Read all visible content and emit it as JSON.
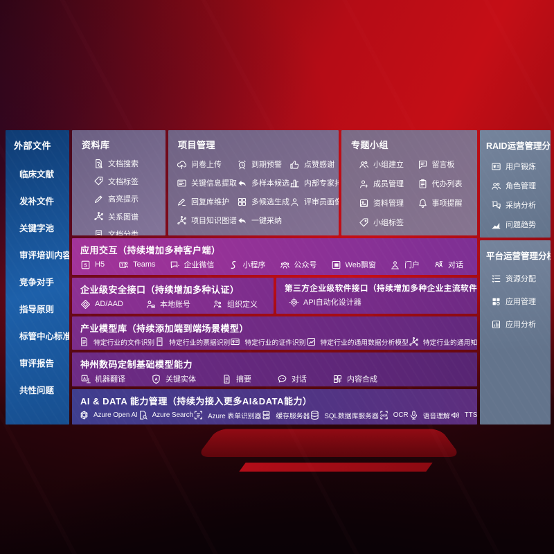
{
  "palette": {
    "blue1": "#0f3c74",
    "blue2": "#1d60aa",
    "gray1": "#6b5f82",
    "gray2": "#83759a",
    "slate1": "#63748c",
    "slate2": "#75849c",
    "p1": "#a23399",
    "p2": "#7e3094",
    "p3": "#8d3093",
    "p4": "#6f2a84",
    "p5": "#63297e",
    "p6": "#572573",
    "i1": "#3f3e8e",
    "i2": "#5d2e7e",
    "bg_red": "#c50e16",
    "bg_dark": "#16020a"
  },
  "external_files": {
    "title": "外部文件",
    "items": [
      "临床文献",
      "发补文件",
      "关键字池",
      "审评培训内容",
      "竞争对手",
      "指导原则",
      "标管中心标准",
      "审评报告",
      "共性问题"
    ]
  },
  "library": {
    "title": "资料库",
    "items": [
      {
        "label": "文档搜索",
        "icon": "doc-search"
      },
      {
        "label": "文档标签",
        "icon": "tag"
      },
      {
        "label": "高亮提示",
        "icon": "highlight-pen"
      },
      {
        "label": "关系图谱",
        "icon": "knowledge-graph"
      },
      {
        "label": "文档分类",
        "icon": "doc-category"
      }
    ]
  },
  "project": {
    "title": "项目管理",
    "items": [
      {
        "label": "问卷上传",
        "icon": "cloud-upload"
      },
      {
        "label": "到期预警",
        "icon": "alarm"
      },
      {
        "label": "点赞感谢",
        "icon": "thumbs-up"
      },
      {
        "label": "关键信息提取",
        "icon": "info-card"
      },
      {
        "label": "多样本候选",
        "icon": "reply-arrow"
      },
      {
        "label": "内部专家排名",
        "icon": "ranking"
      },
      {
        "label": "回复库维护",
        "icon": "pen"
      },
      {
        "label": "多候选生成",
        "icon": "grid"
      },
      {
        "label": "评审员画像",
        "icon": "person"
      },
      {
        "label": "项目知识图谱",
        "icon": "knowledge-graph"
      },
      {
        "label": "一键采纳",
        "icon": "reply-arrow"
      }
    ]
  },
  "topic_group": {
    "title": "专题小组",
    "items": [
      {
        "label": "小组建立",
        "icon": "people"
      },
      {
        "label": "留言板",
        "icon": "bbs-chat"
      },
      {
        "label": "成员管理",
        "icon": "member-person"
      },
      {
        "label": "代办列表",
        "icon": "clipboard"
      },
      {
        "label": "资料管理",
        "icon": "album"
      },
      {
        "label": "事项提醒",
        "icon": "bell"
      },
      {
        "label": "小组标签",
        "icon": "tag"
      }
    ]
  },
  "raid": {
    "title": "RAID运营管理分析",
    "items": [
      {
        "label": "用户锻炼",
        "icon": "user-card"
      },
      {
        "label": "角色管理",
        "icon": "role-people"
      },
      {
        "label": "采纳分析",
        "icon": "qa-chat"
      },
      {
        "label": "问题趋势",
        "icon": "trend-chart"
      }
    ]
  },
  "platform": {
    "title": "平台运营管理分析",
    "items": [
      {
        "label": "资源分配",
        "icon": "resource-list"
      },
      {
        "label": "应用管理",
        "icon": "app-grid"
      },
      {
        "label": "应用分析",
        "icon": "app-analysis"
      }
    ]
  },
  "interaction": {
    "title": "应用交互（持续增加多种客户端）",
    "items": [
      {
        "label": "H5",
        "icon": "h5-badge"
      },
      {
        "label": "Teams",
        "icon": "teams-badge"
      },
      {
        "label": "企业微信",
        "icon": "wecom-chat"
      },
      {
        "label": "小程序",
        "icon": "miniprogram"
      },
      {
        "label": "公众号",
        "icon": "official-account"
      },
      {
        "label": "Web飘窗",
        "icon": "web-window"
      },
      {
        "label": "门户",
        "icon": "portal-person"
      },
      {
        "label": "对话",
        "icon": "dialog-people"
      }
    ]
  },
  "security": {
    "title": "企业级安全接口（持续增加多种认证）",
    "items": [
      {
        "label": "AD/AAD",
        "icon": "ad-diamond"
      },
      {
        "label": "本地账号",
        "icon": "local-account"
      },
      {
        "label": "组织定义",
        "icon": "org-people"
      }
    ]
  },
  "third_party": {
    "title": "第三方企业级软件接口（持续增加多种企业主流软件接口）",
    "items": [
      {
        "label": "API自动化设计器",
        "icon": "api-gear"
      }
    ]
  },
  "industry_models": {
    "title": "产业模型库（持续添加端到端场景模型）",
    "items": [
      {
        "label": "特定行业的文件识别",
        "icon": "file-doc"
      },
      {
        "label": "特定行业的票据识别",
        "icon": "bill-list"
      },
      {
        "label": "特定行业的证件识别",
        "icon": "cert-card"
      },
      {
        "label": "特定行业的通用数据分析模型",
        "icon": "data-analysis-photo"
      },
      {
        "label": "特定行业的通用知识图谱模型",
        "icon": "knowledge-graph"
      }
    ]
  },
  "base_models": {
    "title": "神州数码定制基础模型能力",
    "items": [
      {
        "label": "机器翻译",
        "icon": "translate"
      },
      {
        "label": "关键实体",
        "icon": "entity-shield"
      },
      {
        "label": "摘要",
        "icon": "summary-doc"
      },
      {
        "label": "对话",
        "icon": "chat-bubble"
      },
      {
        "label": "内容合成",
        "icon": "compose-grid"
      }
    ]
  },
  "ai_data": {
    "title": "AI & DATA 能力管理（持续为接入更多AI&DATA能力）",
    "items": [
      {
        "label": "Azure Open AI",
        "icon": "openai"
      },
      {
        "label": "Azure Search",
        "icon": "azure-search"
      },
      {
        "label": "Azure 表单识别器",
        "icon": "form-recognizer"
      },
      {
        "label": "缓存服务器",
        "icon": "cache-server"
      },
      {
        "label": "SQL数据库服务器",
        "icon": "sql-database"
      },
      {
        "label": "OCR",
        "icon": "ocr"
      },
      {
        "label": "语音理解",
        "icon": "speech"
      },
      {
        "label": "TTS",
        "icon": "tts"
      }
    ]
  }
}
